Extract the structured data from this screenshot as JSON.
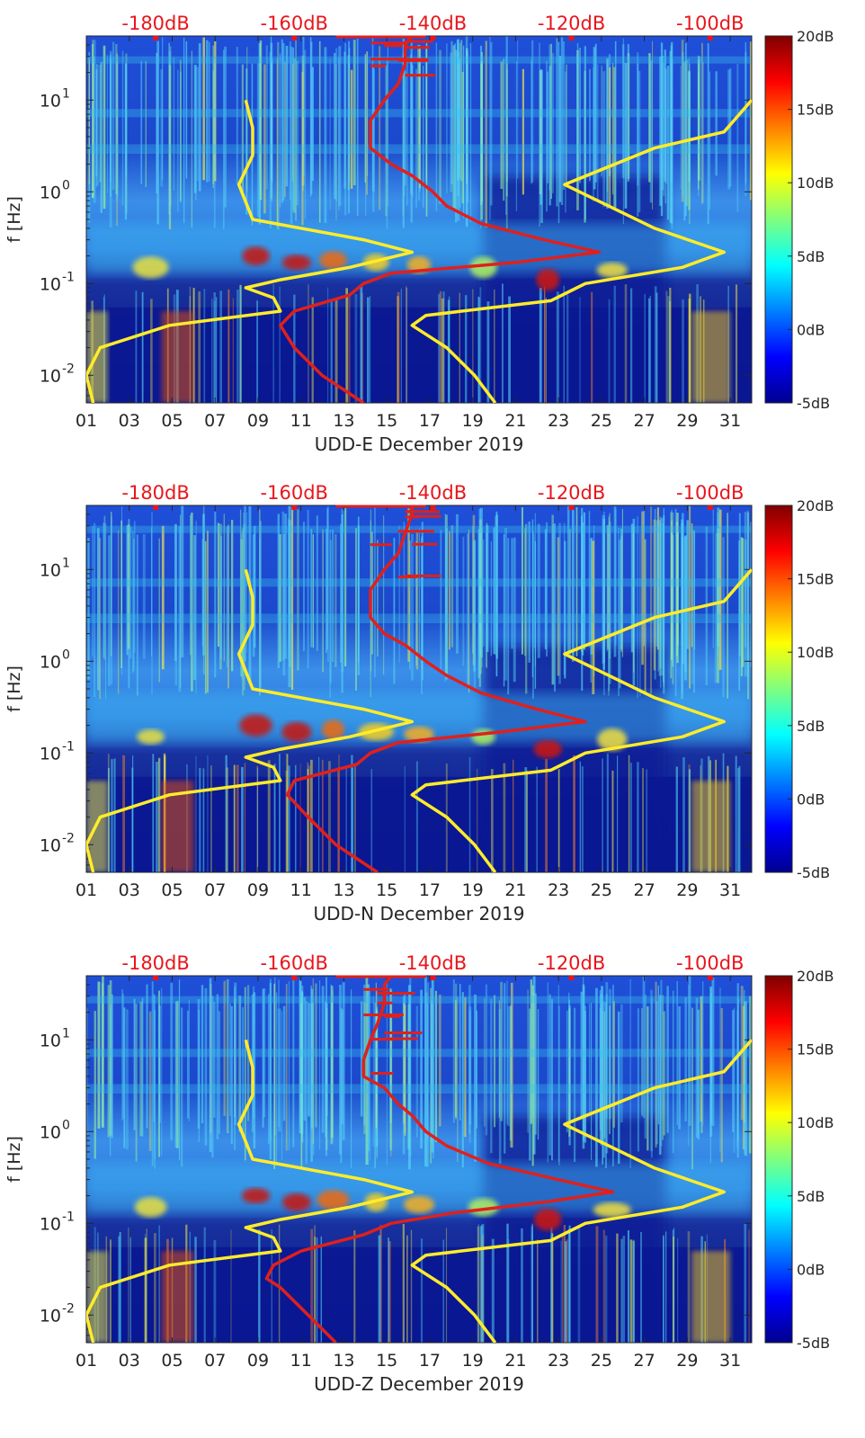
{
  "colors": {
    "top_axis": "#e8161c",
    "red_curve": "#e0201c",
    "yellow_curve": "#ffec2a",
    "axis": "#262626",
    "background_field": "#0a1e9c"
  },
  "shared": {
    "ylabel": "f [Hz]",
    "y_ticks": [
      {
        "value": 10,
        "base": "10",
        "exp": "1"
      },
      {
        "value": 1,
        "base": "10",
        "exp": "0"
      },
      {
        "value": 0.1,
        "base": "10",
        "exp": "-1"
      },
      {
        "value": 0.01,
        "base": "10",
        "exp": "-2"
      }
    ],
    "x_ticks": [
      "01",
      "03",
      "05",
      "07",
      "09",
      "11",
      "13",
      "15",
      "17",
      "19",
      "21",
      "23",
      "25",
      "27",
      "29",
      "31"
    ],
    "top_ticks": [
      "-180dB",
      "-160dB",
      "-140dB",
      "-120dB",
      "-100dB"
    ],
    "colorbar_ticks": [
      "20dB",
      "15dB",
      "10dB",
      "5dB",
      "0dB",
      "-5dB"
    ]
  },
  "chart_data": [
    {
      "type": "heatmap",
      "title": "UDD-E December 2019",
      "xlabel": "UDD-E December 2019",
      "ylabel": "f [Hz]",
      "x_range_days": [
        1,
        32
      ],
      "y_range_hz": [
        0.005,
        50
      ],
      "y_scale": "log",
      "color_range_db": [
        -5,
        20
      ],
      "top_axis_range_db": [
        -190,
        -94
      ],
      "red_psd_curve": {
        "name": "median PSD",
        "freq_hz": [
          0.005,
          0.01,
          0.02,
          0.035,
          0.05,
          0.075,
          0.1,
          0.13,
          0.17,
          0.22,
          0.3,
          0.45,
          0.7,
          1.0,
          1.5,
          2.0,
          3.0,
          4.0,
          6.0,
          10.0,
          15.0,
          25.0,
          40.0,
          50.0
        ],
        "db": [
          -150,
          -156,
          -160,
          -162,
          -160,
          -152,
          -150,
          -146,
          -128,
          -116,
          -124,
          -133,
          -138,
          -140,
          -143,
          -146,
          -149,
          -149,
          -149,
          -147,
          -145,
          -144,
          -144,
          -143
        ]
      },
      "yellow_noise_model_curves": [
        {
          "name": "low noise model",
          "freq_hz": [
            0.005,
            0.01,
            0.02,
            0.035,
            0.05,
            0.07,
            0.09,
            0.11,
            0.15,
            0.22,
            0.3,
            0.5,
            1.2,
            2.5,
            5.0,
            10.0
          ],
          "db": [
            -189,
            -190,
            -188,
            -178,
            -162,
            -163,
            -167,
            -162,
            -152,
            -143,
            -150,
            -166,
            -168,
            -166,
            -166,
            -167
          ]
        },
        {
          "name": "high noise model",
          "freq_hz": [
            0.005,
            0.01,
            0.02,
            0.035,
            0.045,
            0.065,
            0.1,
            0.15,
            0.22,
            0.4,
            1.2,
            3.0,
            4.5,
            10.0
          ],
          "db": [
            -131,
            -134,
            -138,
            -143,
            -141,
            -123,
            -118,
            -104,
            -98,
            -108,
            -121,
            -108,
            -98,
            -94
          ]
        }
      ]
    },
    {
      "type": "heatmap",
      "title": "UDD-N December 2019",
      "xlabel": "UDD-N December 2019",
      "ylabel": "f [Hz]",
      "x_range_days": [
        1,
        32
      ],
      "y_range_hz": [
        0.005,
        50
      ],
      "y_scale": "log",
      "color_range_db": [
        -5,
        20
      ],
      "top_axis_range_db": [
        -190,
        -94
      ],
      "red_psd_curve": {
        "name": "median PSD",
        "freq_hz": [
          0.005,
          0.01,
          0.02,
          0.035,
          0.05,
          0.075,
          0.1,
          0.13,
          0.17,
          0.22,
          0.3,
          0.45,
          0.7,
          1.0,
          1.5,
          2.0,
          3.0,
          4.0,
          6.0,
          10.0,
          15.0,
          25.0,
          40.0,
          50.0
        ],
        "db": [
          -148,
          -154,
          -158,
          -161,
          -160,
          -151,
          -149,
          -145,
          -130,
          -118,
          -125,
          -133,
          -138,
          -141,
          -144,
          -147,
          -149,
          -149,
          -149,
          -147,
          -145,
          -144,
          -143,
          -143
        ]
      },
      "yellow_noise_model_curves": [
        {
          "name": "low noise model",
          "freq_hz": [
            0.005,
            0.01,
            0.02,
            0.035,
            0.05,
            0.07,
            0.09,
            0.11,
            0.15,
            0.22,
            0.3,
            0.5,
            1.2,
            2.5,
            5.0,
            10.0
          ],
          "db": [
            -189,
            -190,
            -188,
            -178,
            -162,
            -163,
            -167,
            -162,
            -152,
            -143,
            -150,
            -166,
            -168,
            -166,
            -166,
            -167
          ]
        },
        {
          "name": "high noise model",
          "freq_hz": [
            0.005,
            0.01,
            0.02,
            0.035,
            0.045,
            0.065,
            0.1,
            0.15,
            0.22,
            0.4,
            1.2,
            3.0,
            4.5,
            10.0
          ],
          "db": [
            -131,
            -134,
            -138,
            -143,
            -141,
            -123,
            -118,
            -104,
            -98,
            -108,
            -121,
            -108,
            -98,
            -94
          ]
        }
      ]
    },
    {
      "type": "heatmap",
      "title": "UDD-Z December 2019",
      "xlabel": "UDD-Z December 2019",
      "ylabel": "f [Hz]",
      "x_range_days": [
        1,
        32
      ],
      "y_range_hz": [
        0.005,
        50
      ],
      "y_scale": "log",
      "color_range_db": [
        -5,
        20
      ],
      "top_axis_range_db": [
        -190,
        -94
      ],
      "red_psd_curve": {
        "name": "median PSD",
        "freq_hz": [
          0.005,
          0.01,
          0.02,
          0.025,
          0.035,
          0.05,
          0.075,
          0.1,
          0.13,
          0.17,
          0.22,
          0.3,
          0.45,
          0.7,
          1.0,
          1.5,
          2.0,
          3.0,
          4.0,
          6.0,
          10.0,
          15.0,
          25.0,
          40.0,
          50.0
        ],
        "db": [
          -154,
          -158,
          -162,
          -164,
          -163,
          -159,
          -150,
          -146,
          -137,
          -124,
          -114,
          -122,
          -132,
          -138,
          -141,
          -143,
          -145,
          -147,
          -150,
          -150,
          -149,
          -148,
          -147,
          -147,
          -146
        ]
      },
      "yellow_noise_model_curves": [
        {
          "name": "low noise model",
          "freq_hz": [
            0.005,
            0.01,
            0.02,
            0.035,
            0.05,
            0.07,
            0.09,
            0.11,
            0.15,
            0.22,
            0.3,
            0.5,
            1.2,
            2.5,
            5.0,
            10.0
          ],
          "db": [
            -189,
            -190,
            -188,
            -178,
            -162,
            -163,
            -167,
            -162,
            -152,
            -143,
            -150,
            -166,
            -168,
            -166,
            -166,
            -167
          ]
        },
        {
          "name": "high noise model",
          "freq_hz": [
            0.005,
            0.01,
            0.02,
            0.035,
            0.045,
            0.065,
            0.1,
            0.15,
            0.22,
            0.4,
            1.2,
            3.0,
            4.5,
            10.0
          ],
          "db": [
            -131,
            -134,
            -138,
            -143,
            -141,
            -123,
            -118,
            -104,
            -98,
            -108,
            -121,
            -108,
            -98,
            -94
          ]
        }
      ]
    }
  ]
}
